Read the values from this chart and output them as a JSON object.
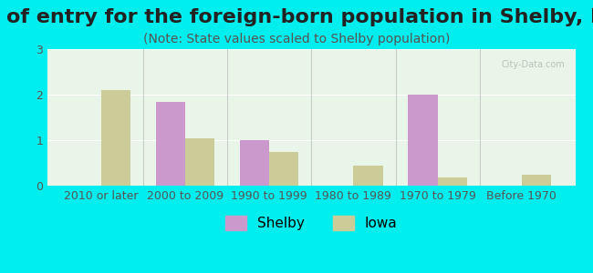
{
  "title": "Year of entry for the foreign-born population in Shelby, Iowa",
  "subtitle": "(Note: State values scaled to Shelby population)",
  "categories": [
    "2010 or later",
    "2000 to 2009",
    "1990 to 1999",
    "1980 to 1989",
    "1970 to 1979",
    "Before 1970"
  ],
  "shelby_values": [
    0,
    1.85,
    1.0,
    0,
    2.0,
    0
  ],
  "iowa_values": [
    2.1,
    1.05,
    0.75,
    0.45,
    0.18,
    0.25
  ],
  "shelby_color": "#cc99cc",
  "iowa_color": "#cccc99",
  "background_color": "#00eeee",
  "plot_bg_color_top": "#e8f5e8",
  "plot_bg_color_bottom": "#f5fff5",
  "ylim": [
    0,
    3
  ],
  "yticks": [
    0,
    1,
    2,
    3
  ],
  "bar_width": 0.35,
  "title_fontsize": 16,
  "subtitle_fontsize": 10,
  "tick_fontsize": 9,
  "legend_fontsize": 11
}
